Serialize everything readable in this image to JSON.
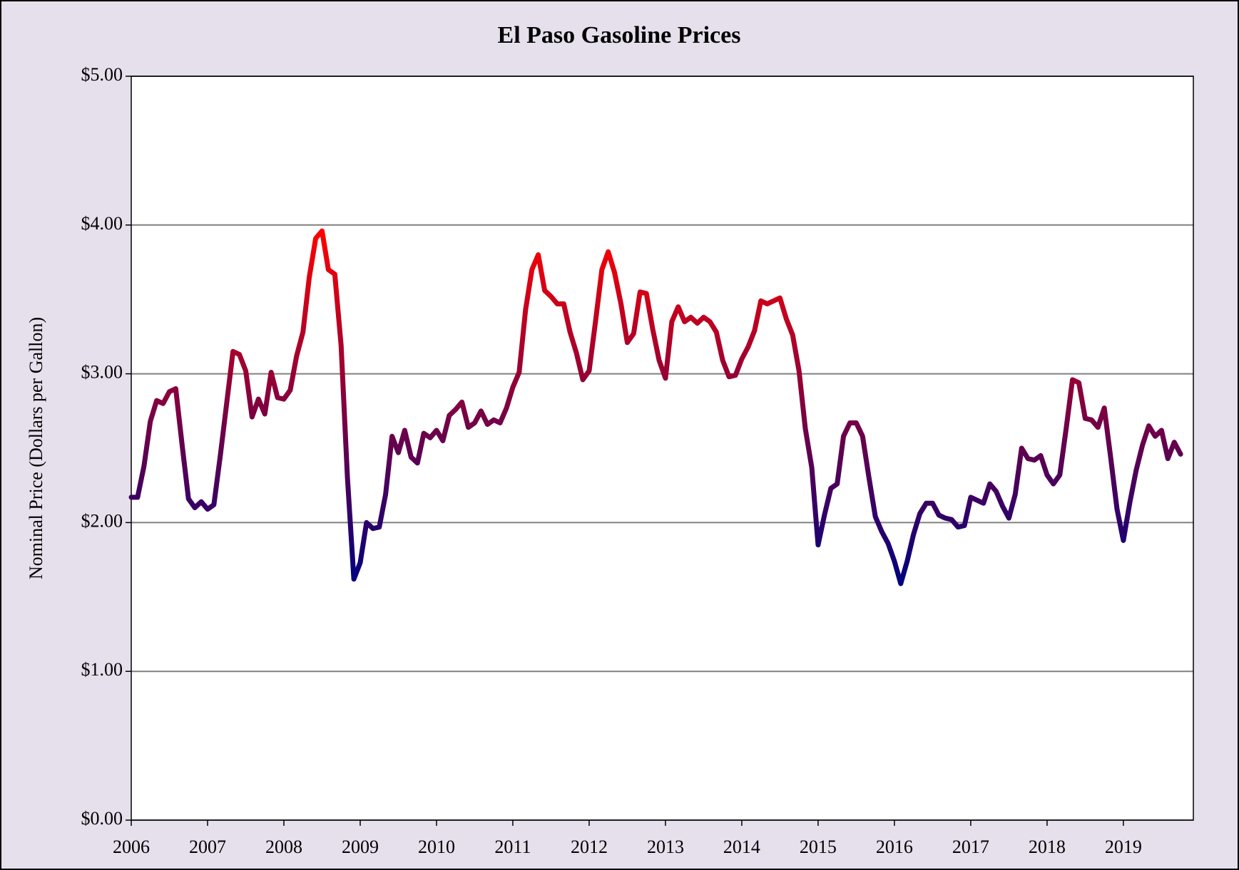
{
  "chart_data": {
    "type": "line",
    "title": "El Paso Gasoline Prices",
    "y_label": "Nominal Price (Dollars per Gallon)",
    "x": [
      2006,
      2006.083,
      2006.167,
      2006.25,
      2006.333,
      2006.417,
      2006.5,
      2006.583,
      2006.667,
      2006.75,
      2006.833,
      2006.917,
      2007,
      2007.083,
      2007.167,
      2007.25,
      2007.333,
      2007.417,
      2007.5,
      2007.583,
      2007.667,
      2007.75,
      2007.833,
      2007.917,
      2008,
      2008.083,
      2008.167,
      2008.25,
      2008.333,
      2008.417,
      2008.5,
      2008.583,
      2008.667,
      2008.75,
      2008.833,
      2008.917,
      2009,
      2009.083,
      2009.167,
      2009.25,
      2009.333,
      2009.417,
      2009.5,
      2009.583,
      2009.667,
      2009.75,
      2009.833,
      2009.917,
      2010,
      2010.083,
      2010.167,
      2010.25,
      2010.333,
      2010.417,
      2010.5,
      2010.583,
      2010.667,
      2010.75,
      2010.833,
      2010.917,
      2011,
      2011.083,
      2011.167,
      2011.25,
      2011.333,
      2011.417,
      2011.5,
      2011.583,
      2011.667,
      2011.75,
      2011.833,
      2011.917,
      2012,
      2012.083,
      2012.167,
      2012.25,
      2012.333,
      2012.417,
      2012.5,
      2012.583,
      2012.667,
      2012.75,
      2012.833,
      2012.917,
      2013,
      2013.083,
      2013.167,
      2013.25,
      2013.333,
      2013.417,
      2013.5,
      2013.583,
      2013.667,
      2013.75,
      2013.833,
      2013.917,
      2014,
      2014.083,
      2014.167,
      2014.25,
      2014.333,
      2014.417,
      2014.5,
      2014.583,
      2014.667,
      2014.75,
      2014.833,
      2014.917,
      2015,
      2015.083,
      2015.167,
      2015.25,
      2015.333,
      2015.417,
      2015.5,
      2015.583,
      2015.667,
      2015.75,
      2015.833,
      2015.917,
      2016,
      2016.083,
      2016.167,
      2016.25,
      2016.333,
      2016.417,
      2016.5,
      2016.583,
      2016.667,
      2016.75,
      2016.833,
      2016.917,
      2017,
      2017.083,
      2017.167,
      2017.25,
      2017.333,
      2017.417,
      2017.5,
      2017.583,
      2017.667,
      2017.75,
      2017.833,
      2017.917,
      2018,
      2018.083,
      2018.167,
      2018.25,
      2018.333,
      2018.417,
      2018.5,
      2018.583,
      2018.667,
      2018.75,
      2018.833,
      2018.917,
      2019,
      2019.083,
      2019.167,
      2019.25,
      2019.333,
      2019.417,
      2019.5,
      2019.583,
      2019.667,
      2019.75
    ],
    "values": [
      2.17,
      2.17,
      2.38,
      2.68,
      2.82,
      2.8,
      2.88,
      2.9,
      2.52,
      2.16,
      2.1,
      2.14,
      2.09,
      2.12,
      2.45,
      2.8,
      3.15,
      3.13,
      3.02,
      2.71,
      2.83,
      2.73,
      3.01,
      2.84,
      2.83,
      2.89,
      3.12,
      3.28,
      3.65,
      3.91,
      3.96,
      3.7,
      3.67,
      3.19,
      2.3,
      1.62,
      1.73,
      2.0,
      1.96,
      1.97,
      2.19,
      2.58,
      2.47,
      2.62,
      2.44,
      2.4,
      2.6,
      2.57,
      2.62,
      2.55,
      2.72,
      2.76,
      2.81,
      2.64,
      2.67,
      2.75,
      2.66,
      2.69,
      2.67,
      2.77,
      2.91,
      3.01,
      3.43,
      3.7,
      3.8,
      3.56,
      3.52,
      3.47,
      3.47,
      3.28,
      3.14,
      2.96,
      3.02,
      3.35,
      3.7,
      3.82,
      3.68,
      3.47,
      3.21,
      3.27,
      3.55,
      3.54,
      3.3,
      3.09,
      2.97,
      3.35,
      3.45,
      3.35,
      3.38,
      3.34,
      3.38,
      3.35,
      3.28,
      3.09,
      2.98,
      2.99,
      3.1,
      3.18,
      3.29,
      3.49,
      3.47,
      3.49,
      3.51,
      3.37,
      3.26,
      3.02,
      2.63,
      2.37,
      1.85,
      2.05,
      2.23,
      2.26,
      2.58,
      2.67,
      2.67,
      2.58,
      2.3,
      2.04,
      1.94,
      1.86,
      1.74,
      1.59,
      1.74,
      1.92,
      2.06,
      2.13,
      2.13,
      2.05,
      2.03,
      2.02,
      1.97,
      1.98,
      2.17,
      2.15,
      2.13,
      2.26,
      2.21,
      2.11,
      2.03,
      2.19,
      2.5,
      2.43,
      2.42,
      2.45,
      2.32,
      2.26,
      2.32,
      2.63,
      2.96,
      2.94,
      2.7,
      2.69,
      2.64,
      2.77,
      2.44,
      2.09,
      1.88,
      2.13,
      2.35,
      2.52,
      2.65,
      2.58,
      2.62,
      2.43,
      2.54,
      2.46
    ],
    "color_gradient": [
      "#000080",
      "#ff0000"
    ],
    "xlim": [
      2006,
      2019.917
    ],
    "xticks": [
      2006,
      2007,
      2008,
      2009,
      2010,
      2011,
      2012,
      2013,
      2014,
      2015,
      2016,
      2017,
      2018,
      2019
    ],
    "ylim": [
      0,
      5
    ],
    "yticks": [
      {
        "value": 0,
        "label": "$0.00"
      },
      {
        "value": 1,
        "label": "$1.00"
      },
      {
        "value": 2,
        "label": "$2.00"
      },
      {
        "value": 3,
        "label": "$3.00"
      },
      {
        "value": 4,
        "label": "$4.00"
      },
      {
        "value": 5,
        "label": "$5.00"
      }
    ],
    "grid": true
  }
}
